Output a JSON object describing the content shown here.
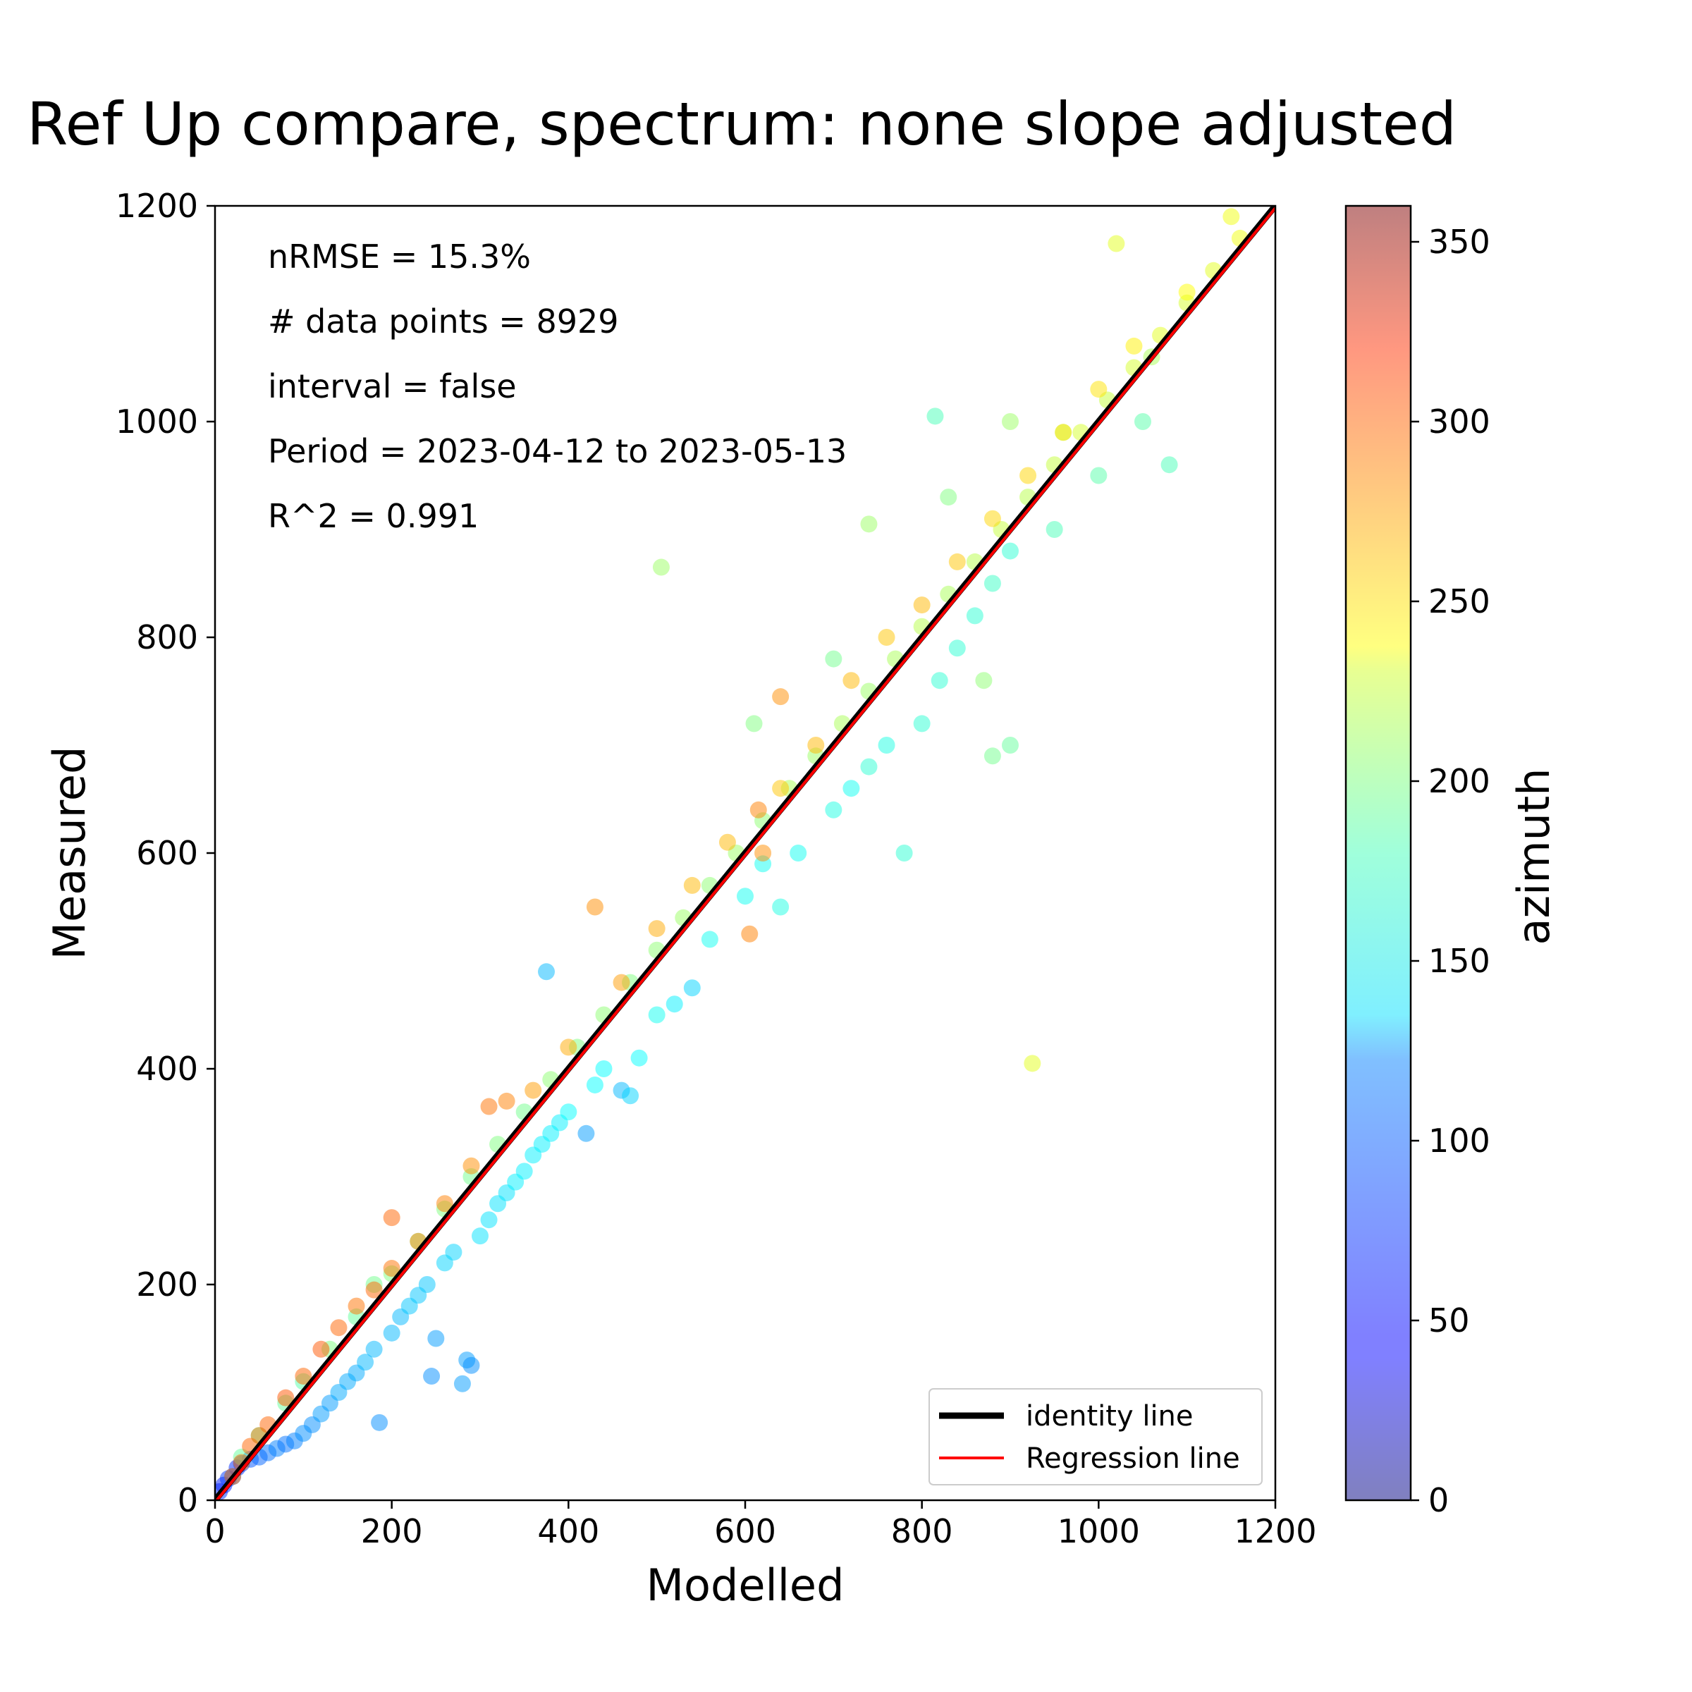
{
  "chart_data": {
    "type": "scatter",
    "title": "Ref Up compare, spectrum: none slope adjusted",
    "xlabel": "Modelled",
    "ylabel": "Measured",
    "xlim": [
      0,
      1200
    ],
    "ylim": [
      0,
      1200
    ],
    "xticks": [
      "0",
      "200",
      "400",
      "600",
      "800",
      "1000",
      "1200"
    ],
    "yticks": [
      "0",
      "200",
      "400",
      "600",
      "800",
      "1000",
      "1200"
    ],
    "annotations": [
      "nRMSE = 15.3%",
      "# data points = 8929",
      "interval = false",
      "Period = 2023-04-12 to 2023-05-13",
      "R^2 = 0.991"
    ],
    "legend": {
      "position": "lower-right",
      "entries": [
        {
          "label": "identity line",
          "color": "#000000"
        },
        {
          "label": "Regression line",
          "color": "#ff0000"
        }
      ]
    },
    "colorbar": {
      "label": "azimuth",
      "range": [
        0,
        360
      ],
      "ticks": [
        "0",
        "50",
        "100",
        "150",
        "200",
        "250",
        "300",
        "350"
      ],
      "colormap": "jet"
    },
    "lines": [
      {
        "name": "identity line",
        "slope": 1.0,
        "intercept": 0
      },
      {
        "name": "Regression line",
        "slope": 1.0,
        "intercept": -2
      }
    ],
    "series": [
      {
        "points": [
          [
            5,
            8,
            60
          ],
          [
            10,
            14,
            55
          ],
          [
            15,
            20,
            65
          ],
          [
            20,
            22,
            70
          ],
          [
            25,
            30,
            60
          ],
          [
            30,
            34,
            65
          ],
          [
            40,
            38,
            75
          ],
          [
            50,
            40,
            80
          ],
          [
            60,
            44,
            85
          ],
          [
            70,
            48,
            90
          ],
          [
            80,
            52,
            85
          ],
          [
            90,
            55,
            90
          ],
          [
            100,
            62,
            95
          ],
          [
            110,
            70,
            95
          ],
          [
            120,
            80,
            100
          ],
          [
            130,
            90,
            100
          ],
          [
            140,
            100,
            105
          ],
          [
            150,
            110,
            105
          ],
          [
            160,
            118,
            105
          ],
          [
            170,
            128,
            110
          ],
          [
            180,
            140,
            110
          ],
          [
            186,
            72,
            95
          ],
          [
            200,
            155,
            110
          ],
          [
            210,
            170,
            110
          ],
          [
            220,
            180,
            115
          ],
          [
            230,
            190,
            115
          ],
          [
            240,
            200,
            115
          ],
          [
            245,
            115,
            95
          ],
          [
            250,
            150,
            100
          ],
          [
            260,
            220,
            120
          ],
          [
            270,
            230,
            120
          ],
          [
            280,
            108,
            100
          ],
          [
            285,
            130,
            100
          ],
          [
            290,
            125,
            95
          ],
          [
            300,
            245,
            125
          ],
          [
            310,
            260,
            125
          ],
          [
            320,
            275,
            125
          ],
          [
            330,
            285,
            125
          ],
          [
            340,
            295,
            130
          ],
          [
            350,
            305,
            130
          ],
          [
            360,
            320,
            130
          ],
          [
            370,
            330,
            130
          ],
          [
            375,
            490,
            110
          ],
          [
            380,
            340,
            130
          ],
          [
            390,
            350,
            130
          ],
          [
            400,
            360,
            135
          ],
          [
            420,
            340,
            100
          ],
          [
            430,
            385,
            135
          ],
          [
            440,
            400,
            135
          ],
          [
            460,
            380,
            110
          ],
          [
            470,
            375,
            120
          ],
          [
            480,
            410,
            135
          ],
          [
            500,
            450,
            140
          ],
          [
            520,
            460,
            130
          ],
          [
            540,
            475,
            120
          ],
          [
            560,
            520,
            140
          ],
          [
            600,
            560,
            140
          ],
          [
            620,
            590,
            140
          ],
          [
            640,
            550,
            145
          ],
          [
            660,
            600,
            140
          ],
          [
            700,
            640,
            145
          ],
          [
            720,
            660,
            140
          ],
          [
            740,
            680,
            150
          ],
          [
            760,
            700,
            145
          ],
          [
            780,
            600,
            150
          ],
          [
            800,
            720,
            150
          ],
          [
            820,
            760,
            150
          ],
          [
            840,
            790,
            150
          ],
          [
            860,
            820,
            150
          ],
          [
            880,
            850,
            155
          ],
          [
            900,
            880,
            150
          ],
          [
            950,
            900,
            160
          ],
          [
            1000,
            950,
            165
          ],
          [
            1050,
            1000,
            165
          ],
          [
            1080,
            960,
            160
          ]
        ]
      },
      {
        "points": [
          [
            30,
            40,
            170
          ],
          [
            50,
            60,
            160
          ],
          [
            80,
            90,
            170
          ],
          [
            100,
            110,
            165
          ],
          [
            130,
            140,
            180
          ],
          [
            160,
            170,
            170
          ],
          [
            180,
            200,
            175
          ],
          [
            200,
            210,
            180
          ],
          [
            230,
            240,
            175
          ],
          [
            260,
            270,
            180
          ],
          [
            290,
            300,
            175
          ],
          [
            320,
            330,
            180
          ],
          [
            350,
            360,
            175
          ],
          [
            380,
            390,
            185
          ],
          [
            410,
            420,
            180
          ],
          [
            440,
            450,
            185
          ],
          [
            470,
            480,
            180
          ],
          [
            500,
            510,
            185
          ],
          [
            530,
            540,
            190
          ],
          [
            560,
            570,
            185
          ],
          [
            590,
            600,
            190
          ],
          [
            620,
            630,
            185
          ],
          [
            650,
            660,
            195
          ],
          [
            680,
            690,
            190
          ],
          [
            710,
            720,
            195
          ],
          [
            740,
            750,
            190
          ],
          [
            770,
            780,
            195
          ],
          [
            800,
            810,
            200
          ],
          [
            830,
            840,
            195
          ],
          [
            860,
            870,
            200
          ],
          [
            890,
            900,
            205
          ],
          [
            920,
            930,
            200
          ],
          [
            950,
            960,
            205
          ],
          [
            980,
            990,
            210
          ],
          [
            1010,
            1020,
            205
          ],
          [
            1040,
            1050,
            210
          ],
          [
            1070,
            1080,
            215
          ],
          [
            1100,
            1110,
            210
          ],
          [
            1130,
            1140,
            215
          ],
          [
            1160,
            1170,
            220
          ],
          [
            505,
            865,
            190
          ],
          [
            610,
            720,
            180
          ],
          [
            700,
            780,
            175
          ],
          [
            740,
            905,
            190
          ],
          [
            815,
            1005,
            160
          ],
          [
            830,
            930,
            180
          ],
          [
            900,
            1000,
            190
          ],
          [
            925,
            405,
            215
          ],
          [
            960,
            990,
            200
          ],
          [
            1020,
            1165,
            215
          ],
          [
            1060,
            1060,
            195
          ],
          [
            870,
            760,
            185
          ],
          [
            880,
            690,
            175
          ],
          [
            900,
            700,
            170
          ]
        ]
      },
      {
        "points": [
          [
            20,
            22,
            270
          ],
          [
            30,
            35,
            275
          ],
          [
            40,
            50,
            280
          ],
          [
            50,
            60,
            275
          ],
          [
            60,
            70,
            280
          ],
          [
            80,
            95,
            285
          ],
          [
            100,
            115,
            280
          ],
          [
            120,
            140,
            285
          ],
          [
            140,
            160,
            280
          ],
          [
            160,
            180,
            275
          ],
          [
            180,
            195,
            280
          ],
          [
            200,
            215,
            275
          ],
          [
            200,
            262,
            280
          ],
          [
            230,
            240,
            270
          ],
          [
            260,
            275,
            270
          ],
          [
            290,
            310,
            265
          ],
          [
            310,
            365,
            275
          ],
          [
            330,
            370,
            270
          ],
          [
            360,
            380,
            260
          ],
          [
            400,
            420,
            255
          ],
          [
            430,
            550,
            265
          ],
          [
            460,
            480,
            260
          ],
          [
            500,
            530,
            255
          ],
          [
            540,
            570,
            250
          ],
          [
            580,
            610,
            250
          ],
          [
            615,
            640,
            270
          ],
          [
            620,
            600,
            265
          ],
          [
            640,
            660,
            245
          ],
          [
            680,
            700,
            250
          ],
          [
            605,
            525,
            270
          ],
          [
            640,
            745,
            265
          ],
          [
            720,
            760,
            250
          ],
          [
            760,
            800,
            245
          ],
          [
            800,
            830,
            250
          ],
          [
            840,
            870,
            245
          ],
          [
            880,
            910,
            240
          ],
          [
            920,
            950,
            240
          ],
          [
            960,
            990,
            235
          ],
          [
            1000,
            1030,
            235
          ],
          [
            1040,
            1070,
            230
          ],
          [
            1100,
            1120,
            225
          ],
          [
            1150,
            1190,
            220
          ]
        ]
      }
    ]
  }
}
